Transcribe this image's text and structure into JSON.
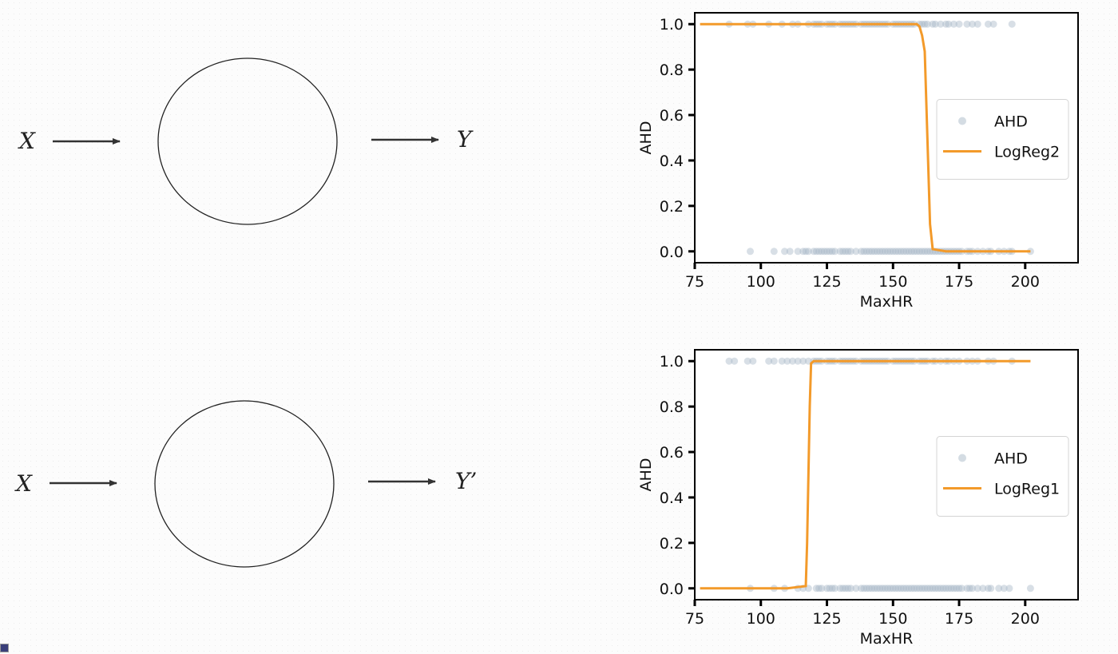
{
  "diagram": {
    "top": {
      "input": "X",
      "output": "Y"
    },
    "bottom": {
      "input": "X",
      "output": "Y’"
    }
  },
  "colors": {
    "scatter": "#a9b9c8",
    "line": "#f39a2a",
    "axes": "#000000"
  },
  "chart_data": [
    {
      "type": "scatter",
      "xlabel": "MaxHR",
      "ylabel": "AHD",
      "xlim": [
        75,
        220
      ],
      "ylim": [
        -0.05,
        1.05
      ],
      "xticks": [
        75,
        100,
        125,
        150,
        175,
        200
      ],
      "yticks": [
        0.0,
        0.2,
        0.4,
        0.6,
        0.8,
        1.0
      ],
      "legend_position": "center-right",
      "series": [
        {
          "name": "AHD",
          "kind": "scatter",
          "x": [
            88,
            95,
            97,
            103,
            108,
            112,
            114,
            118,
            120,
            121,
            122,
            123,
            125,
            126,
            127,
            128,
            130,
            131,
            132,
            133,
            134,
            135,
            136,
            138,
            139,
            140,
            141,
            142,
            143,
            144,
            145,
            146,
            147,
            148,
            150,
            151,
            152,
            153,
            154,
            155,
            156,
            157,
            158,
            160,
            161,
            162,
            163,
            165,
            166,
            168,
            170,
            171,
            173,
            175,
            178,
            180,
            182,
            186,
            188,
            195,
            96,
            105,
            109,
            111,
            114,
            116,
            117,
            118,
            120,
            121,
            122,
            123,
            124,
            125,
            126,
            127,
            128,
            130,
            131,
            132,
            133,
            134,
            136,
            138,
            139,
            140,
            141,
            142,
            143,
            144,
            145,
            146,
            147,
            148,
            149,
            150,
            151,
            152,
            153,
            154,
            155,
            156,
            157,
            158,
            159,
            160,
            161,
            162,
            163,
            164,
            165,
            166,
            167,
            168,
            169,
            170,
            171,
            172,
            173,
            174,
            175,
            176,
            178,
            179,
            180,
            182,
            184,
            186,
            187,
            190,
            192,
            194,
            195,
            202
          ],
          "y": [
            1,
            1,
            1,
            1,
            1,
            1,
            1,
            1,
            1,
            1,
            1,
            1,
            1,
            1,
            1,
            1,
            1,
            1,
            1,
            1,
            1,
            1,
            1,
            1,
            1,
            1,
            1,
            1,
            1,
            1,
            1,
            1,
            1,
            1,
            1,
            1,
            1,
            1,
            1,
            1,
            1,
            1,
            1,
            1,
            1,
            1,
            1,
            1,
            1,
            1,
            1,
            1,
            1,
            1,
            1,
            1,
            1,
            1,
            1,
            1,
            0,
            0,
            0,
            0,
            0,
            0,
            0,
            0,
            0,
            0,
            0,
            0,
            0,
            0,
            0,
            0,
            0,
            0,
            0,
            0,
            0,
            0,
            0,
            0,
            0,
            0,
            0,
            0,
            0,
            0,
            0,
            0,
            0,
            0,
            0,
            0,
            0,
            0,
            0,
            0,
            0,
            0,
            0,
            0,
            0,
            0,
            0,
            0,
            0,
            0,
            0,
            0,
            0,
            0,
            0,
            0,
            0,
            0,
            0,
            0,
            0,
            0,
            0,
            0,
            0,
            0,
            0,
            0,
            0,
            0,
            0,
            0,
            0,
            0
          ]
        },
        {
          "name": "LogReg2",
          "kind": "line",
          "x": [
            77,
            150,
            159,
            160,
            161,
            162,
            163,
            164,
            165,
            170,
            202
          ],
          "y": [
            1.0,
            1.0,
            1.0,
            0.99,
            0.95,
            0.88,
            0.5,
            0.12,
            0.01,
            0.0,
            0.0
          ]
        }
      ]
    },
    {
      "type": "scatter",
      "xlabel": "MaxHR",
      "ylabel": "AHD",
      "xlim": [
        75,
        220
      ],
      "ylim": [
        -0.05,
        1.05
      ],
      "xticks": [
        75,
        100,
        125,
        150,
        175,
        200
      ],
      "yticks": [
        0.0,
        0.2,
        0.4,
        0.6,
        0.8,
        1.0
      ],
      "legend_position": "center-right",
      "series": [
        {
          "name": "AHD",
          "kind": "scatter",
          "x": [
            88,
            90,
            95,
            97,
            103,
            105,
            108,
            110,
            112,
            114,
            116,
            118,
            120,
            121,
            122,
            123,
            125,
            126,
            127,
            128,
            130,
            131,
            132,
            133,
            134,
            135,
            136,
            138,
            139,
            140,
            141,
            142,
            143,
            144,
            145,
            146,
            147,
            148,
            150,
            151,
            152,
            153,
            154,
            155,
            156,
            157,
            158,
            160,
            161,
            162,
            163,
            165,
            166,
            168,
            170,
            171,
            173,
            175,
            178,
            180,
            182,
            186,
            188,
            195,
            96,
            105,
            109,
            114,
            116,
            118,
            121,
            122,
            123,
            125,
            126,
            127,
            128,
            130,
            131,
            132,
            133,
            134,
            136,
            138,
            139,
            140,
            141,
            142,
            143,
            144,
            145,
            146,
            147,
            148,
            149,
            150,
            151,
            152,
            153,
            154,
            155,
            156,
            157,
            158,
            159,
            160,
            161,
            162,
            163,
            164,
            165,
            166,
            167,
            168,
            169,
            170,
            171,
            172,
            173,
            174,
            175,
            176,
            178,
            179,
            180,
            182,
            184,
            186,
            187,
            190,
            192,
            194,
            202
          ],
          "y": [
            1,
            1,
            1,
            1,
            1,
            1,
            1,
            1,
            1,
            1,
            1,
            1,
            1,
            1,
            1,
            1,
            1,
            1,
            1,
            1,
            1,
            1,
            1,
            1,
            1,
            1,
            1,
            1,
            1,
            1,
            1,
            1,
            1,
            1,
            1,
            1,
            1,
            1,
            1,
            1,
            1,
            1,
            1,
            1,
            1,
            1,
            1,
            1,
            1,
            1,
            1,
            1,
            1,
            1,
            1,
            1,
            1,
            1,
            1,
            1,
            1,
            1,
            1,
            1,
            0,
            0,
            0,
            0,
            0,
            0,
            0,
            0,
            0,
            0,
            0,
            0,
            0,
            0,
            0,
            0,
            0,
            0,
            0,
            0,
            0,
            0,
            0,
            0,
            0,
            0,
            0,
            0,
            0,
            0,
            0,
            0,
            0,
            0,
            0,
            0,
            0,
            0,
            0,
            0,
            0,
            0,
            0,
            0,
            0,
            0,
            0,
            0,
            0,
            0,
            0,
            0,
            0,
            0,
            0,
            0,
            0,
            0,
            0,
            0,
            0,
            0,
            0,
            0,
            0,
            0,
            0,
            0,
            0
          ]
        },
        {
          "name": "LogReg1",
          "kind": "line",
          "x": [
            77,
            110,
            117,
            117.5,
            118,
            118.5,
            119,
            120,
            125,
            202
          ],
          "y": [
            0.0,
            0.0,
            0.01,
            0.2,
            0.5,
            0.8,
            0.99,
            1.0,
            1.0,
            1.0
          ]
        }
      ]
    }
  ]
}
